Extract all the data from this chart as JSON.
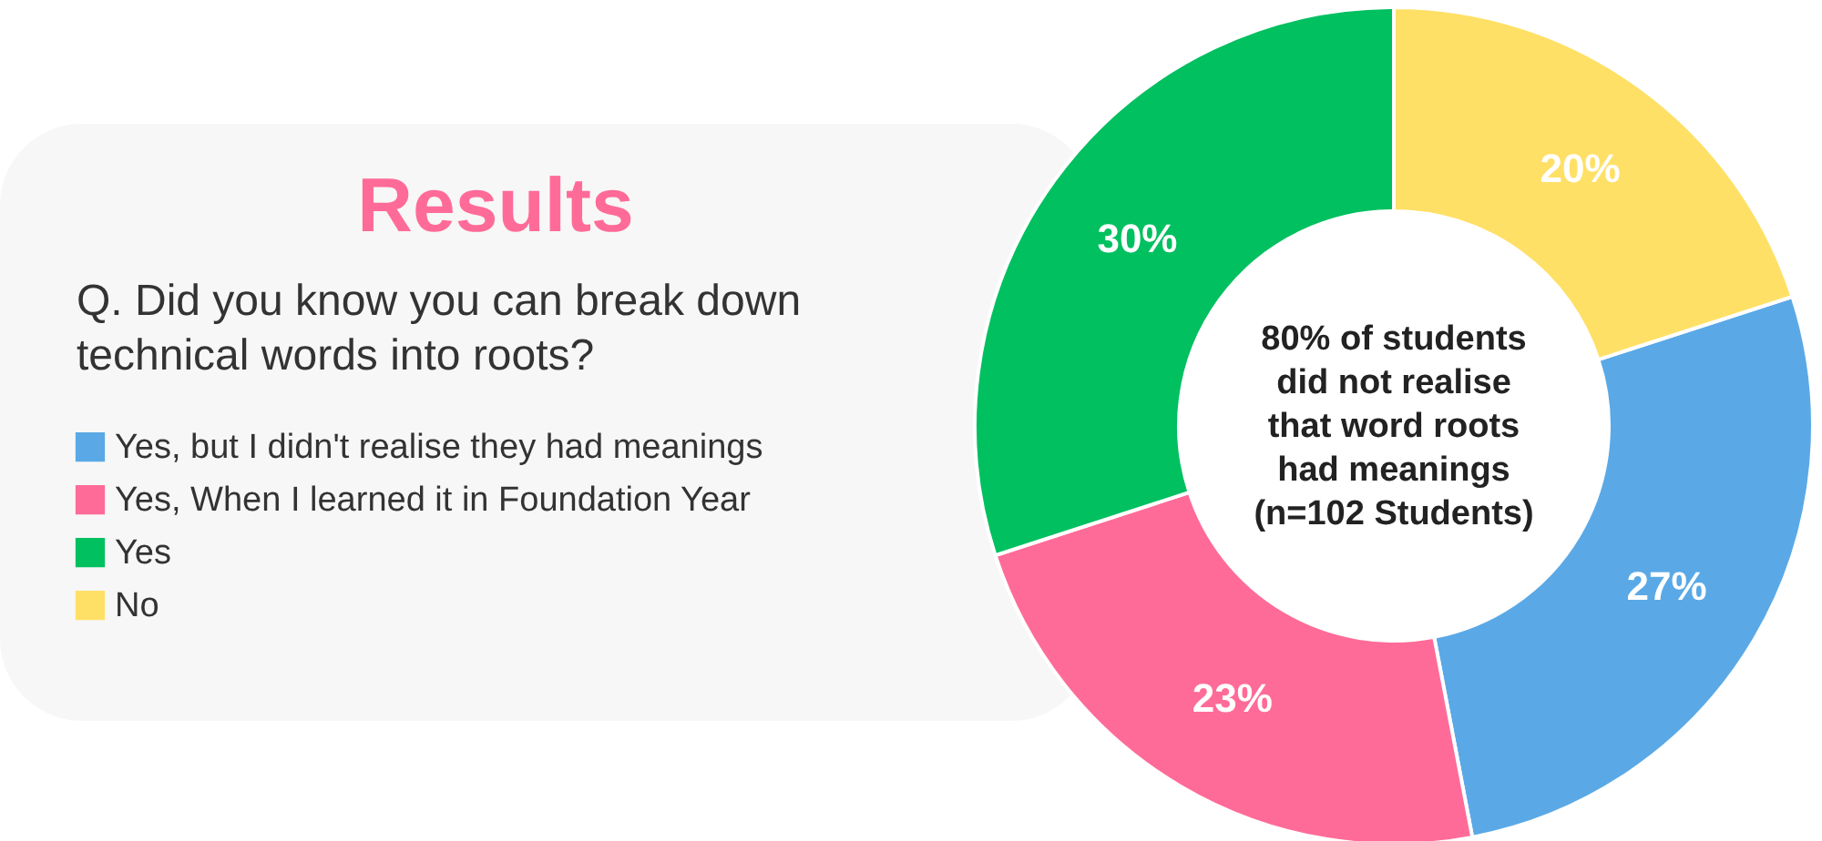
{
  "chart_data": {
    "type": "donut",
    "title": "Results",
    "subtitle": "Q. Did you know you can break down\ntechnical words into roots?",
    "categories": [
      "Yes, but I didn't realise they had meanings",
      "Yes, When I learned it in Foundation Year",
      "Yes",
      "No"
    ],
    "values": [
      27,
      23,
      30,
      20
    ],
    "colors": [
      "#5aa9e6",
      "#ff6b98",
      "#00c060",
      "#ffe066"
    ],
    "value_labels": [
      "27%",
      "23%",
      "30%",
      "20%"
    ],
    "annotations": [
      "80% of students\ndid not realise\nthat word roots\nhad meanings\n(n=102 Students)"
    ],
    "legend": "left"
  }
}
